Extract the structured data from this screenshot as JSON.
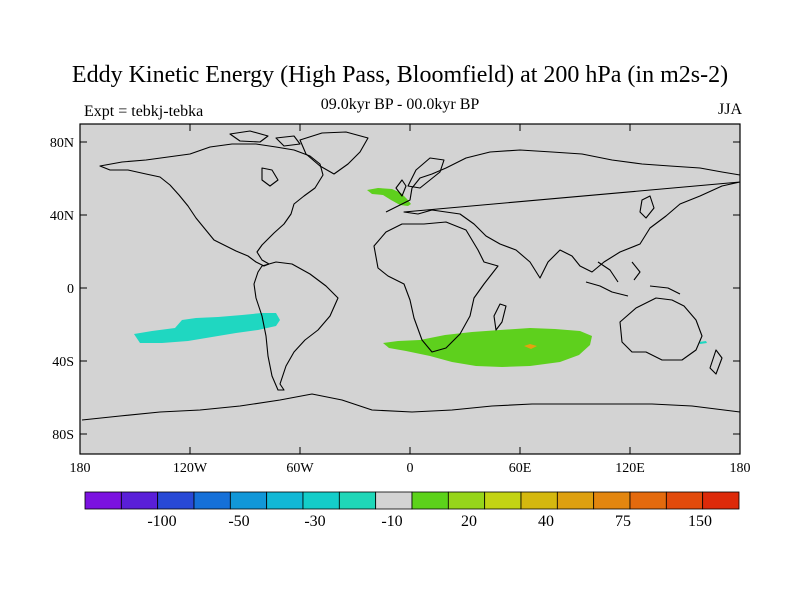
{
  "title": "Eddy Kinetic Energy (High Pass, Bloomfield) at 200 hPa (in m2s-2)",
  "subtitle": "09.0kyr BP - 00.0kyr BP",
  "left_label": "Expt = tebkj-tebka",
  "right_label": "JJA",
  "colors": {
    "ocean": "#d3d3d3",
    "coast": "#000000",
    "green": "#5ed01d",
    "cyan": "#1fd7c1",
    "orange": "#e3a210"
  },
  "axes": {
    "lon_ticks": [
      "180",
      "120W",
      "60W",
      "0",
      "60E",
      "120E",
      "180"
    ],
    "lat_ticks": [
      "80N",
      "40N",
      "0",
      "40S",
      "80S"
    ]
  },
  "colorbar": {
    "colors": [
      "#7b12e0",
      "#5a1fd8",
      "#2849d6",
      "#1570d8",
      "#1197d8",
      "#12b8d6",
      "#14cdc9",
      "#1fd7b8",
      "#d3d3d3",
      "#5cd21a",
      "#96d51a",
      "#c3d314",
      "#d4b80f",
      "#dea010",
      "#e3860f",
      "#e46a0d",
      "#e24a0b",
      "#dd2a0a"
    ],
    "labels": [
      "-100",
      "-50",
      "-30",
      "-10",
      "20",
      "40",
      "75",
      "150"
    ]
  }
}
